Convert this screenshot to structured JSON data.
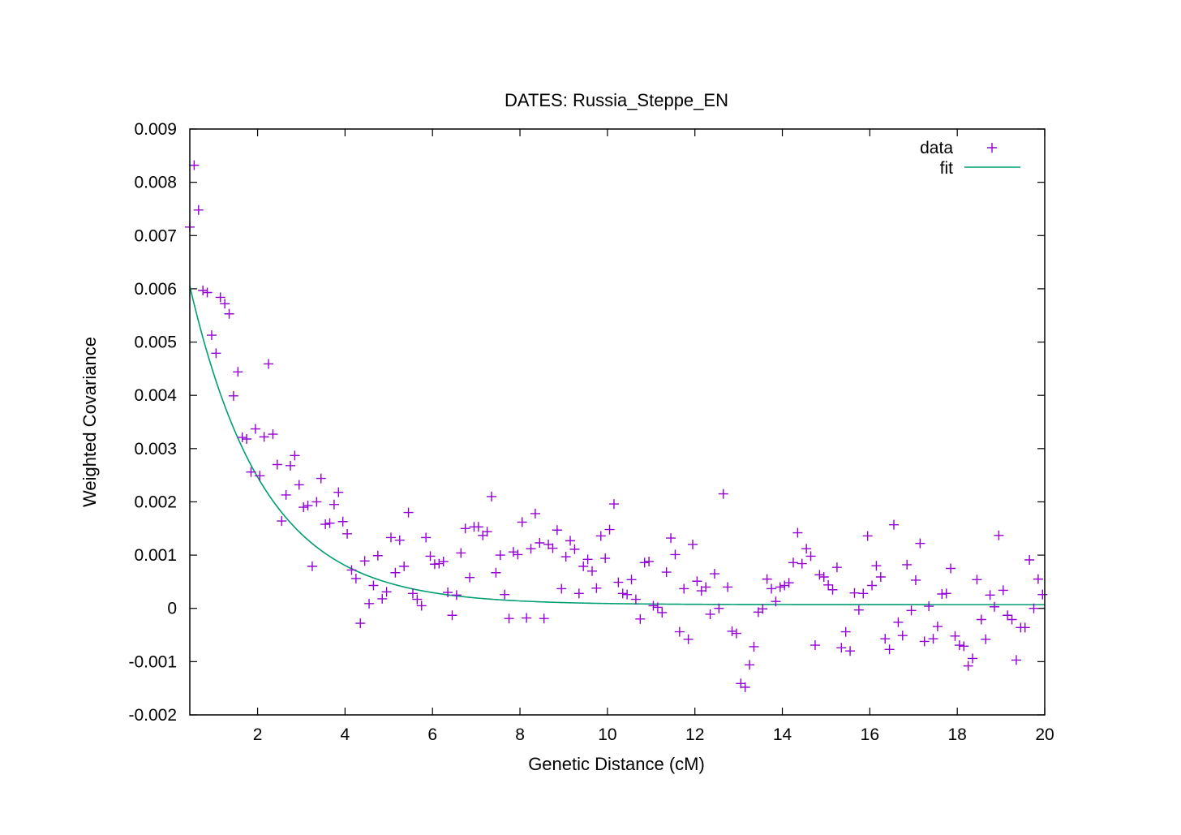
{
  "chart_data": {
    "type": "scatter",
    "title": "DATES: Russia_Steppe_EN",
    "xlabel": "Genetic Distance (cM)",
    "ylabel": "Weighted Covariance",
    "xlim": [
      0.45,
      20
    ],
    "ylim": [
      -0.002,
      0.009
    ],
    "xticks": [
      2,
      4,
      6,
      8,
      10,
      12,
      14,
      16,
      18,
      20
    ],
    "yticks": [
      -0.002,
      -0.001,
      0,
      0.001,
      0.002,
      0.003,
      0.004,
      0.005,
      0.006,
      0.007,
      0.008,
      0.009
    ],
    "xtick_labels": [
      "2",
      "4",
      "6",
      "8",
      "10",
      "12",
      "14",
      "16",
      "18",
      "20"
    ],
    "ytick_labels": [
      "-0.002",
      "-0.001",
      "0",
      "0.001",
      "0.002",
      "0.003",
      "0.004",
      "0.005",
      "0.006",
      "0.007",
      "0.008",
      "0.009"
    ],
    "legend_position": "top-right",
    "colors": {
      "data": "#9400d3",
      "fit": "#009e73"
    },
    "series": [
      {
        "name": "data",
        "marker": "plus",
        "x": [
          0.45,
          0.55,
          0.65,
          0.75,
          0.85,
          0.95,
          1.05,
          1.15,
          1.25,
          1.35,
          1.45,
          1.55,
          1.65,
          1.75,
          1.85,
          1.95,
          2.05,
          2.15,
          2.25,
          2.35,
          2.45,
          2.55,
          2.65,
          2.75,
          2.85,
          2.95,
          3.05,
          3.15,
          3.25,
          3.35,
          3.45,
          3.55,
          3.65,
          3.75,
          3.85,
          3.95,
          4.05,
          4.15,
          4.25,
          4.35,
          4.45,
          4.55,
          4.65,
          4.75,
          4.85,
          4.95,
          5.05,
          5.15,
          5.25,
          5.35,
          5.45,
          5.55,
          5.65,
          5.75,
          5.85,
          5.95,
          6.05,
          6.15,
          6.25,
          6.35,
          6.45,
          6.55,
          6.65,
          6.75,
          6.85,
          6.95,
          7.05,
          7.15,
          7.25,
          7.35,
          7.45,
          7.55,
          7.65,
          7.75,
          7.85,
          7.95,
          8.05,
          8.15,
          8.25,
          8.35,
          8.45,
          8.55,
          8.65,
          8.75,
          8.85,
          8.95,
          9.05,
          9.15,
          9.25,
          9.35,
          9.45,
          9.55,
          9.65,
          9.75,
          9.85,
          9.95,
          10.05,
          10.15,
          10.25,
          10.35,
          10.45,
          10.55,
          10.65,
          10.75,
          10.85,
          10.95,
          11.05,
          11.15,
          11.25,
          11.35,
          11.45,
          11.55,
          11.65,
          11.75,
          11.85,
          11.95,
          12.05,
          12.15,
          12.25,
          12.35,
          12.45,
          12.55,
          12.65,
          12.75,
          12.85,
          12.95,
          13.05,
          13.15,
          13.25,
          13.35,
          13.45,
          13.55,
          13.65,
          13.75,
          13.85,
          13.95,
          14.05,
          14.15,
          14.25,
          14.35,
          14.45,
          14.55,
          14.65,
          14.75,
          14.85,
          14.95,
          15.05,
          15.15,
          15.25,
          15.35,
          15.45,
          15.55,
          15.65,
          15.75,
          15.85,
          15.95,
          16.05,
          16.15,
          16.25,
          16.35,
          16.45,
          16.55,
          16.65,
          16.75,
          16.85,
          16.95,
          17.05,
          17.15,
          17.25,
          17.35,
          17.45,
          17.55,
          17.65,
          17.75,
          17.85,
          17.95,
          18.05,
          18.15,
          18.25,
          18.35,
          18.45,
          18.55,
          18.65,
          18.75,
          18.85,
          18.95,
          19.05,
          19.15,
          19.25,
          19.35,
          19.45,
          19.55,
          19.65,
          19.75,
          19.85,
          19.95
        ],
        "y": [
          0.00716,
          0.00832,
          0.00748,
          0.00597,
          0.00593,
          0.00513,
          0.00479,
          0.00584,
          0.00572,
          0.00553,
          0.00399,
          0.00444,
          0.00321,
          0.00318,
          0.00256,
          0.00337,
          0.00249,
          0.00322,
          0.00459,
          0.00327,
          0.0027,
          0.00164,
          0.00213,
          0.00268,
          0.00287,
          0.00232,
          0.0019,
          0.00193,
          0.00079,
          0.002,
          0.00244,
          0.00158,
          0.0016,
          0.00195,
          0.00218,
          0.00163,
          0.0014,
          0.00072,
          0.00056,
          -0.00028,
          0.00089,
          9e-05,
          0.00043,
          0.00099,
          0.00018,
          0.00031,
          0.00133,
          0.00067,
          0.00128,
          0.00079,
          0.0018,
          0.00028,
          0.00017,
          5e-05,
          0.00133,
          0.00098,
          0.00083,
          0.00084,
          0.00088,
          0.0003,
          -0.00013,
          0.00025,
          0.00104,
          0.0015,
          0.00058,
          0.00153,
          0.00153,
          0.00137,
          0.00144,
          0.0021,
          0.00067,
          0.001,
          0.00026,
          -0.00019,
          0.00106,
          0.00101,
          0.00162,
          -0.00018,
          0.00112,
          0.00178,
          0.00123,
          -0.00019,
          0.0012,
          0.00113,
          0.00147,
          0.00037,
          0.00097,
          0.00127,
          0.00111,
          0.00028,
          0.00079,
          0.00092,
          0.0007,
          0.00038,
          0.00136,
          0.00094,
          0.00148,
          0.00196,
          0.00049,
          0.00028,
          0.00026,
          0.00054,
          0.00017,
          -0.0002,
          0.00086,
          0.00088,
          5e-05,
          2e-05,
          -8e-05,
          0.00068,
          0.00132,
          0.00101,
          -0.00044,
          0.00037,
          -0.00058,
          0.0012,
          0.00051,
          0.00033,
          0.0004,
          -0.00011,
          0.00065,
          0.0,
          0.00215,
          0.0004,
          -0.00043,
          -0.00047,
          -0.00141,
          -0.00148,
          -0.00106,
          -0.00072,
          -7e-05,
          -1e-05,
          0.00055,
          0.00037,
          0.00013,
          0.0004,
          0.00043,
          0.00048,
          0.00086,
          0.00142,
          0.00084,
          0.00112,
          0.00098,
          -0.00069,
          0.00063,
          0.00059,
          0.00044,
          0.00035,
          0.00077,
          -0.00074,
          -0.00044,
          -0.0008,
          0.00029,
          -3e-05,
          0.00028,
          0.00136,
          0.00043,
          0.0008,
          0.00059,
          -0.00057,
          -0.00077,
          0.00157,
          -0.00026,
          -0.00051,
          0.00082,
          -4e-05,
          0.00053,
          0.00122,
          -0.00062,
          4e-05,
          -0.00057,
          -0.00034,
          0.00027,
          0.00028,
          0.00075,
          -0.00052,
          -0.00069,
          -0.00071,
          -0.00108,
          -0.00094,
          0.00054,
          -0.00021,
          -0.00058,
          0.00025,
          3e-05,
          0.00137,
          0.00034,
          -0.00013,
          -0.00021,
          -0.00097,
          -0.00036,
          -0.00036,
          0.00091,
          0.0,
          0.00055,
          0.00026
        ]
      },
      {
        "name": "fit",
        "curve": "exponential",
        "A": 0.0078,
        "lambda": 0.59,
        "c": 7e-05
      }
    ]
  }
}
